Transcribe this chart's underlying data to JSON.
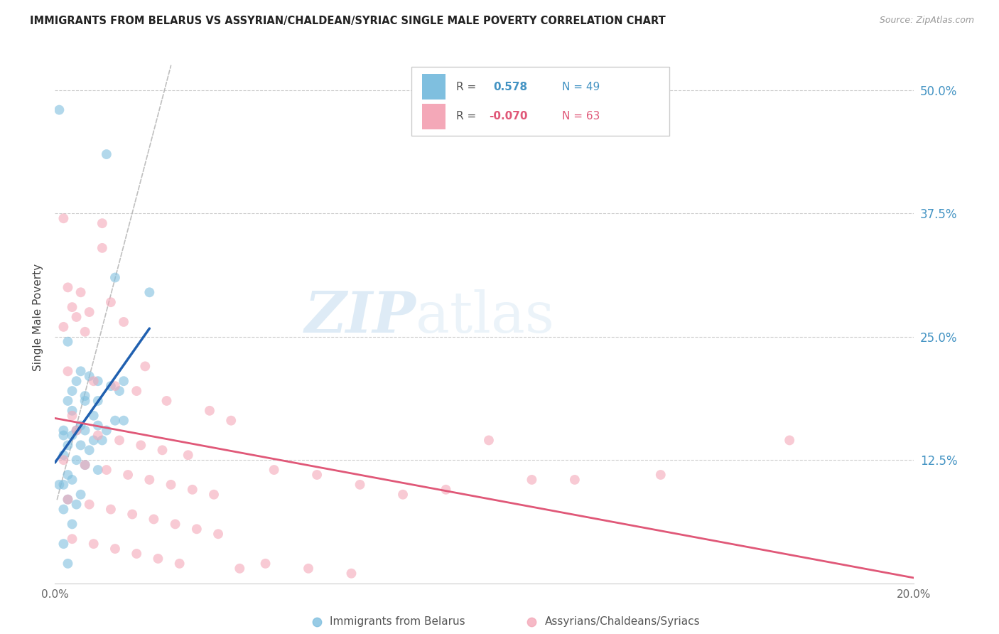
{
  "title": "IMMIGRANTS FROM BELARUS VS ASSYRIAN/CHALDEAN/SYRIAC SINGLE MALE POVERTY CORRELATION CHART",
  "source": "Source: ZipAtlas.com",
  "ylabel": "Single Male Poverty",
  "xlim": [
    0.0,
    0.2
  ],
  "ylim": [
    0.0,
    0.54
  ],
  "xtick_pos": [
    0.0,
    0.05,
    0.1,
    0.15,
    0.2
  ],
  "xtick_labels": [
    "0.0%",
    "",
    "",
    "",
    "20.0%"
  ],
  "ytick_labels_right": [
    "50.0%",
    "37.5%",
    "25.0%",
    "12.5%"
  ],
  "ytick_positions_right": [
    0.5,
    0.375,
    0.25,
    0.125
  ],
  "color_blue": "#7fbfdf",
  "color_pink": "#f4a8b8",
  "color_blue_line": "#2060b0",
  "color_pink_line": "#e05878",
  "color_blue_text": "#4393c3",
  "color_pink_text": "#e05878",
  "color_gray_line": "#b8b8b8",
  "watermark_zip": "ZIP",
  "watermark_atlas": "atlas",
  "scatter_blue": [
    [
      0.001,
      0.48
    ],
    [
      0.012,
      0.435
    ],
    [
      0.014,
      0.31
    ],
    [
      0.022,
      0.295
    ],
    [
      0.003,
      0.245
    ],
    [
      0.006,
      0.215
    ],
    [
      0.008,
      0.21
    ],
    [
      0.005,
      0.205
    ],
    [
      0.01,
      0.205
    ],
    [
      0.013,
      0.2
    ],
    [
      0.016,
      0.205
    ],
    [
      0.004,
      0.195
    ],
    [
      0.007,
      0.19
    ],
    [
      0.003,
      0.185
    ],
    [
      0.007,
      0.185
    ],
    [
      0.01,
      0.185
    ],
    [
      0.004,
      0.175
    ],
    [
      0.009,
      0.17
    ],
    [
      0.014,
      0.165
    ],
    [
      0.016,
      0.165
    ],
    [
      0.006,
      0.16
    ],
    [
      0.01,
      0.16
    ],
    [
      0.002,
      0.155
    ],
    [
      0.005,
      0.155
    ],
    [
      0.007,
      0.155
    ],
    [
      0.012,
      0.155
    ],
    [
      0.002,
      0.15
    ],
    [
      0.004,
      0.15
    ],
    [
      0.009,
      0.145
    ],
    [
      0.011,
      0.145
    ],
    [
      0.003,
      0.14
    ],
    [
      0.006,
      0.14
    ],
    [
      0.008,
      0.135
    ],
    [
      0.002,
      0.13
    ],
    [
      0.005,
      0.125
    ],
    [
      0.007,
      0.12
    ],
    [
      0.01,
      0.115
    ],
    [
      0.003,
      0.11
    ],
    [
      0.004,
      0.105
    ],
    [
      0.002,
      0.1
    ],
    [
      0.006,
      0.09
    ],
    [
      0.003,
      0.085
    ],
    [
      0.005,
      0.08
    ],
    [
      0.002,
      0.075
    ],
    [
      0.004,
      0.06
    ],
    [
      0.002,
      0.04
    ],
    [
      0.003,
      0.02
    ],
    [
      0.001,
      0.1
    ],
    [
      0.015,
      0.195
    ]
  ],
  "scatter_pink": [
    [
      0.002,
      0.37
    ],
    [
      0.011,
      0.365
    ],
    [
      0.011,
      0.34
    ],
    [
      0.003,
      0.3
    ],
    [
      0.006,
      0.295
    ],
    [
      0.013,
      0.285
    ],
    [
      0.004,
      0.28
    ],
    [
      0.008,
      0.275
    ],
    [
      0.005,
      0.27
    ],
    [
      0.016,
      0.265
    ],
    [
      0.002,
      0.26
    ],
    [
      0.007,
      0.255
    ],
    [
      0.021,
      0.22
    ],
    [
      0.003,
      0.215
    ],
    [
      0.009,
      0.205
    ],
    [
      0.014,
      0.2
    ],
    [
      0.019,
      0.195
    ],
    [
      0.026,
      0.185
    ],
    [
      0.036,
      0.175
    ],
    [
      0.004,
      0.17
    ],
    [
      0.041,
      0.165
    ],
    [
      0.005,
      0.155
    ],
    [
      0.01,
      0.15
    ],
    [
      0.015,
      0.145
    ],
    [
      0.02,
      0.14
    ],
    [
      0.025,
      0.135
    ],
    [
      0.031,
      0.13
    ],
    [
      0.002,
      0.125
    ],
    [
      0.007,
      0.12
    ],
    [
      0.012,
      0.115
    ],
    [
      0.017,
      0.11
    ],
    [
      0.022,
      0.105
    ],
    [
      0.027,
      0.1
    ],
    [
      0.032,
      0.095
    ],
    [
      0.037,
      0.09
    ],
    [
      0.003,
      0.085
    ],
    [
      0.008,
      0.08
    ],
    [
      0.013,
      0.075
    ],
    [
      0.018,
      0.07
    ],
    [
      0.023,
      0.065
    ],
    [
      0.028,
      0.06
    ],
    [
      0.033,
      0.055
    ],
    [
      0.038,
      0.05
    ],
    [
      0.004,
      0.045
    ],
    [
      0.009,
      0.04
    ],
    [
      0.014,
      0.035
    ],
    [
      0.019,
      0.03
    ],
    [
      0.024,
      0.025
    ],
    [
      0.029,
      0.02
    ],
    [
      0.043,
      0.015
    ],
    [
      0.101,
      0.145
    ],
    [
      0.111,
      0.105
    ],
    [
      0.051,
      0.115
    ],
    [
      0.061,
      0.11
    ],
    [
      0.071,
      0.1
    ],
    [
      0.081,
      0.09
    ],
    [
      0.049,
      0.02
    ],
    [
      0.059,
      0.015
    ],
    [
      0.069,
      0.01
    ],
    [
      0.171,
      0.145
    ],
    [
      0.141,
      0.11
    ],
    [
      0.121,
      0.105
    ],
    [
      0.091,
      0.095
    ]
  ]
}
